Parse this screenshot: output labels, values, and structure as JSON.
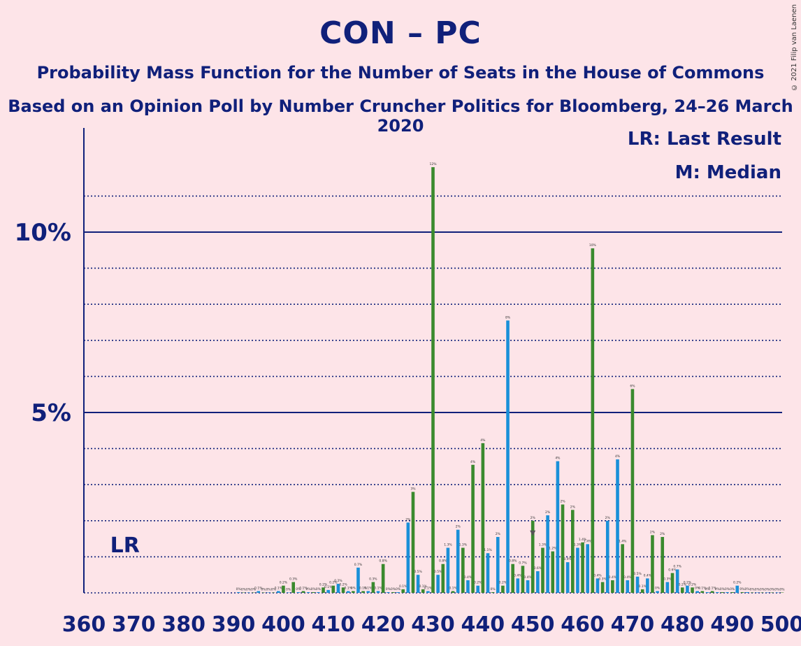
{
  "header": {
    "title": "CON – PC",
    "subtitle": "Probability Mass Function for the Number of Seats in the House of Commons",
    "subtitle2": "Based on an Opinion Poll by Number Cruncher Politics for Bloomberg, 24–26 March 2020",
    "copyright": "© 2021 Filip van Laenen"
  },
  "legend": {
    "lr": "LR: Last Result",
    "m": "M: Median"
  },
  "colors": {
    "background": "#fde4e8",
    "axis": "#10207a",
    "green": "#3a8a2e",
    "blue": "#1a90d8"
  },
  "chart_data": {
    "type": "bar",
    "xlim": [
      360,
      500
    ],
    "ylim": [
      0,
      12.8
    ],
    "x_ticks": [
      360,
      370,
      380,
      390,
      400,
      410,
      420,
      430,
      440,
      450,
      460,
      470,
      480,
      490,
      500
    ],
    "y_ticks": [
      {
        "value": 5,
        "label": "5%"
      },
      {
        "value": 10,
        "label": "10%"
      }
    ],
    "last_result": {
      "x": 365,
      "label": "LR"
    },
    "median": {
      "x": 449,
      "label": "M"
    },
    "bars": [
      {
        "x": 391,
        "value": 0.02,
        "label": "0%"
      },
      {
        "x": 392,
        "value": 0.01,
        "label": "0%"
      },
      {
        "x": 393,
        "value": 0.01,
        "label": "0%"
      },
      {
        "x": 394,
        "value": 0.01,
        "label": "0%"
      },
      {
        "x": 395,
        "value": 0.05,
        "label": "0.1%"
      },
      {
        "x": 396,
        "value": 0.01,
        "label": "0%"
      },
      {
        "x": 397,
        "value": 0.01,
        "label": "0%"
      },
      {
        "x": 398,
        "value": 0.01,
        "label": "0%"
      },
      {
        "x": 399,
        "value": 0.05,
        "label": "0.1%"
      },
      {
        "x": 400,
        "value": 0.2,
        "label": "0.2%"
      },
      {
        "x": 401,
        "value": 0.01,
        "label": "0%"
      },
      {
        "x": 402,
        "value": 0.3,
        "label": "0.3%"
      },
      {
        "x": 403,
        "value": 0.02,
        "label": "0%"
      },
      {
        "x": 404,
        "value": 0.05,
        "label": "0.1%"
      },
      {
        "x": 405,
        "value": 0.02,
        "label": "0%"
      },
      {
        "x": 406,
        "value": 0.02,
        "label": "0%"
      },
      {
        "x": 407,
        "value": 0.02,
        "label": "0%"
      },
      {
        "x": 408,
        "value": 0.15,
        "label": "0.2%"
      },
      {
        "x": 409,
        "value": 0.08,
        "label": "0.1%"
      },
      {
        "x": 410,
        "value": 0.2,
        "label": "0.2%"
      },
      {
        "x": 411,
        "value": 0.25,
        "label": "0.2%"
      },
      {
        "x": 412,
        "value": 0.15,
        "label": "0.2%"
      },
      {
        "x": 413,
        "value": 0.05,
        "label": "0.1%"
      },
      {
        "x": 414,
        "value": 0.05,
        "label": "0%"
      },
      {
        "x": 415,
        "value": 0.7,
        "label": "0.7%"
      },
      {
        "x": 416,
        "value": 0.05,
        "label": "0.1%"
      },
      {
        "x": 417,
        "value": 0.05,
        "label": "0.1%"
      },
      {
        "x": 418,
        "value": 0.3,
        "label": "0.3%"
      },
      {
        "x": 419,
        "value": 0.05,
        "label": "0.1%"
      },
      {
        "x": 420,
        "value": 0.8,
        "label": "0.8%"
      },
      {
        "x": 421,
        "value": 0.02,
        "label": "0%"
      },
      {
        "x": 422,
        "value": 0.02,
        "label": "0%"
      },
      {
        "x": 423,
        "value": 0.02,
        "label": "0%"
      },
      {
        "x": 424,
        "value": 0.1,
        "label": "0.1%"
      },
      {
        "x": 425,
        "value": 1.95,
        "label": "2%"
      },
      {
        "x": 426,
        "value": 2.8,
        "label": "3%"
      },
      {
        "x": 427,
        "value": 0.5,
        "label": "0.5%"
      },
      {
        "x": 428,
        "value": 0.1,
        "label": "0.1%"
      },
      {
        "x": 429,
        "value": 0.05,
        "label": "0.1%"
      },
      {
        "x": 430,
        "value": 11.8,
        "label": "12%"
      },
      {
        "x": 431,
        "value": 0.5,
        "label": "0.5%"
      },
      {
        "x": 432,
        "value": 0.8,
        "label": "0.8%"
      },
      {
        "x": 433,
        "value": 1.25,
        "label": "1.3%"
      },
      {
        "x": 434,
        "value": 0.05,
        "label": "0.1%"
      },
      {
        "x": 435,
        "value": 1.75,
        "label": "2%"
      },
      {
        "x": 436,
        "value": 1.25,
        "label": "1.3%"
      },
      {
        "x": 437,
        "value": 0.35,
        "label": "0.4%"
      },
      {
        "x": 438,
        "value": 3.55,
        "label": "4%"
      },
      {
        "x": 439,
        "value": 0.2,
        "label": "0.2%"
      },
      {
        "x": 440,
        "value": 4.15,
        "label": "4%"
      },
      {
        "x": 441,
        "value": 1.1,
        "label": "1.1%"
      },
      {
        "x": 442,
        "value": 0.02,
        "label": "0%"
      },
      {
        "x": 443,
        "value": 1.55,
        "label": "2%"
      },
      {
        "x": 444,
        "value": 0.2,
        "label": "0.2%"
      },
      {
        "x": 445,
        "value": 7.55,
        "label": "8%"
      },
      {
        "x": 446,
        "value": 0.8,
        "label": "0.8%"
      },
      {
        "x": 447,
        "value": 0.4,
        "label": "0.4%"
      },
      {
        "x": 448,
        "value": 0.75,
        "label": "0.7%"
      },
      {
        "x": 449,
        "value": 0.35,
        "label": "0.4%"
      },
      {
        "x": 450,
        "value": 2.0,
        "label": "2%"
      },
      {
        "x": 451,
        "value": 0.6,
        "label": "0.6%"
      },
      {
        "x": 452,
        "value": 1.25,
        "label": "1.3%"
      },
      {
        "x": 453,
        "value": 2.15,
        "label": "2%"
      },
      {
        "x": 454,
        "value": 1.15,
        "label": "1.2%"
      },
      {
        "x": 455,
        "value": 3.65,
        "label": "4%"
      },
      {
        "x": 456,
        "value": 2.45,
        "label": "2%"
      },
      {
        "x": 457,
        "value": 0.85,
        "label": "0.9%"
      },
      {
        "x": 458,
        "value": 2.3,
        "label": "2%"
      },
      {
        "x": 459,
        "value": 1.25,
        "label": "1.3%"
      },
      {
        "x": 460,
        "value": 1.4,
        "label": "1.4%"
      },
      {
        "x": 461,
        "value": 1.35,
        "label": "1.4%"
      },
      {
        "x": 462,
        "value": 9.55,
        "label": "10%"
      },
      {
        "x": 463,
        "value": 0.4,
        "label": "0.4%"
      },
      {
        "x": 464,
        "value": 0.3,
        "label": "0.3%"
      },
      {
        "x": 465,
        "value": 2.0,
        "label": "2%"
      },
      {
        "x": 466,
        "value": 0.35,
        "label": "0.4%"
      },
      {
        "x": 467,
        "value": 3.7,
        "label": "4%"
      },
      {
        "x": 468,
        "value": 1.35,
        "label": "1.4%"
      },
      {
        "x": 469,
        "value": 0.35,
        "label": "0.4%"
      },
      {
        "x": 470,
        "value": 5.65,
        "label": "6%"
      },
      {
        "x": 471,
        "value": 0.45,
        "label": "0.5%"
      },
      {
        "x": 472,
        "value": 0.1,
        "label": "0.1%"
      },
      {
        "x": 473,
        "value": 0.4,
        "label": "0.4%"
      },
      {
        "x": 474,
        "value": 1.6,
        "label": "2%"
      },
      {
        "x": 475,
        "value": 0.05,
        "label": "0%"
      },
      {
        "x": 476,
        "value": 1.55,
        "label": "2%"
      },
      {
        "x": 477,
        "value": 0.3,
        "label": "0.3%"
      },
      {
        "x": 478,
        "value": 0.55,
        "label": "0.6%"
      },
      {
        "x": 479,
        "value": 0.65,
        "label": "0.7%"
      },
      {
        "x": 480,
        "value": 0.15,
        "label": "0.2%"
      },
      {
        "x": 481,
        "value": 0.2,
        "label": "0.2%"
      },
      {
        "x": 482,
        "value": 0.15,
        "label": "0.2%"
      },
      {
        "x": 483,
        "value": 0.05,
        "label": "0%"
      },
      {
        "x": 484,
        "value": 0.05,
        "label": "0.1%"
      },
      {
        "x": 485,
        "value": 0.02,
        "label": "0%"
      },
      {
        "x": 486,
        "value": 0.05,
        "label": "0.1%"
      },
      {
        "x": 487,
        "value": 0.02,
        "label": "0%"
      },
      {
        "x": 488,
        "value": 0.02,
        "label": "0%"
      },
      {
        "x": 489,
        "value": 0.02,
        "label": "0%"
      },
      {
        "x": 490,
        "value": 0.02,
        "label": "0%"
      },
      {
        "x": 491,
        "value": 0.2,
        "label": "0.2%"
      },
      {
        "x": 492,
        "value": 0.02,
        "label": "0%"
      },
      {
        "x": 493,
        "value": 0.02,
        "label": "0%"
      },
      {
        "x": 494,
        "value": 0.01,
        "label": "0%"
      },
      {
        "x": 495,
        "value": 0.01,
        "label": "0%"
      },
      {
        "x": 496,
        "value": 0.01,
        "label": "0%"
      },
      {
        "x": 497,
        "value": 0.01,
        "label": "0%"
      },
      {
        "x": 498,
        "value": 0.01,
        "label": "0%"
      },
      {
        "x": 499,
        "value": 0.01,
        "label": "0%"
      },
      {
        "x": 500,
        "value": 0.01,
        "label": "0%"
      }
    ]
  }
}
